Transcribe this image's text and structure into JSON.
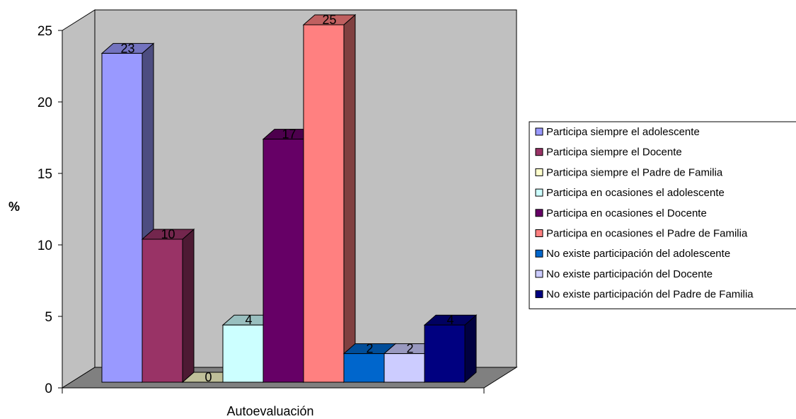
{
  "chart_data": {
    "type": "bar",
    "title": "",
    "xlabel": "",
    "ylabel": "%",
    "categories": [
      "Autoevaluación"
    ],
    "ylim": [
      0,
      25
    ],
    "yticks": [
      0,
      5,
      10,
      15,
      20,
      25
    ],
    "grid": false,
    "legend_position": "right",
    "three_d": true,
    "series": [
      {
        "name": "Participa siempre el adolescente",
        "values": [
          23
        ],
        "color": "#9999ff"
      },
      {
        "name": "Participa siempre el Docente",
        "values": [
          10
        ],
        "color": "#993366"
      },
      {
        "name": "Participa siempre el Padre de Familia",
        "values": [
          0
        ],
        "color": "#ffffcc"
      },
      {
        "name": "Participa en ocasiones el adolescente",
        "values": [
          4
        ],
        "color": "#ccffff"
      },
      {
        "name": "Participa en ocasiones el Docente",
        "values": [
          17
        ],
        "color": "#660066"
      },
      {
        "name": "Participa en ocasiones el Padre de Familia",
        "values": [
          25
        ],
        "color": "#ff8080"
      },
      {
        "name": "No existe participación del adolescente",
        "values": [
          2
        ],
        "color": "#0066cc"
      },
      {
        "name": "No existe participación del Docente",
        "values": [
          2
        ],
        "color": "#ccccff"
      },
      {
        "name": "No existe participación del Padre de Familia",
        "values": [
          4
        ],
        "color": "#000080"
      }
    ]
  },
  "colors": {
    "wall": "#c0c0c0",
    "floor": "#808080",
    "axis": "#000000"
  }
}
